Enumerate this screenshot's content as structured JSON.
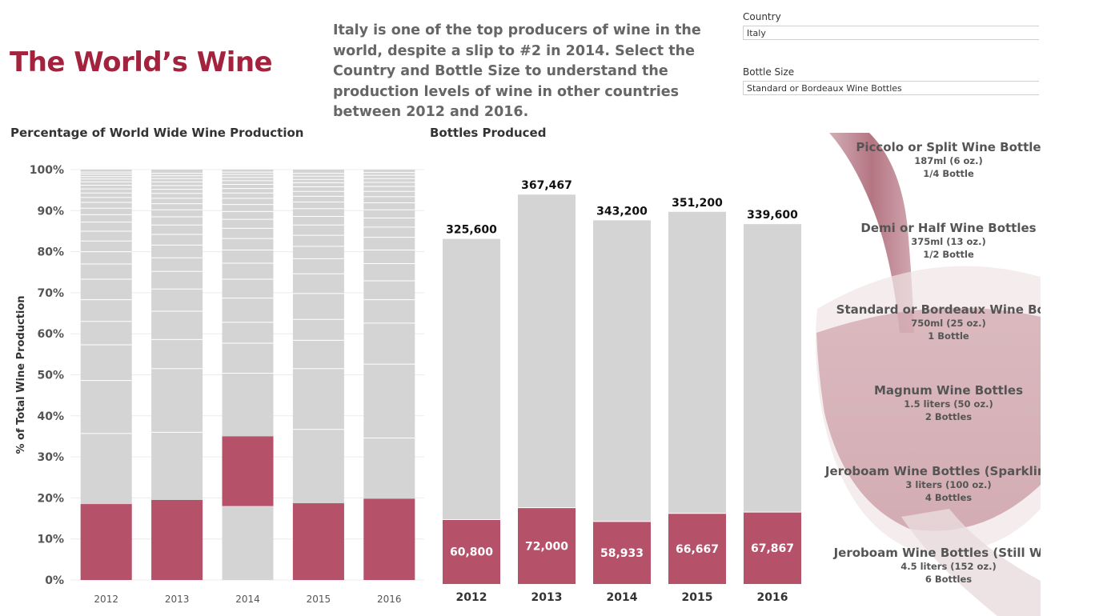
{
  "header": {
    "title": "The World’s Wine",
    "intro": "Italy is one of the top producers of wine in the world, despite a slip to #2 in 2014. Select the Country and Bottle Size to understand the production levels of wine in other countries between 2012 and 2016."
  },
  "filters": {
    "country": {
      "label": "Country",
      "value": "Italy"
    },
    "bottle_size": {
      "label": "Bottle Size",
      "value": "Standard or Bordeaux Wine Bottles"
    }
  },
  "colors": {
    "highlight": "#b5526a",
    "other": "#d4d4d4",
    "title": "#a3233e"
  },
  "chart_data": [
    {
      "type": "bar",
      "stacked": true,
      "title": "Percentage of World Wide Wine Production",
      "ylabel": "% of Total Wine Production",
      "xlabel": "",
      "categories": [
        "2012",
        "2013",
        "2014",
        "2015",
        "2016"
      ],
      "yticks": [
        "0%",
        "10%",
        "20%",
        "30%",
        "40%",
        "50%",
        "60%",
        "70%",
        "80%",
        "90%",
        "100%"
      ],
      "ylim": [
        0,
        100
      ],
      "grid": true,
      "series": [
        {
          "values": [
            0,
            0,
            18,
            0,
            0
          ]
        },
        {
          "values": [
            18.5,
            19.5,
            17,
            18.7,
            19.8
          ]
        }
      ],
      "other_segment_boundaries": [
        [
          35.7,
          48.6,
          57.3,
          63,
          68.3,
          73.3,
          77,
          80,
          82.6,
          85,
          87.2,
          89,
          90.6,
          92,
          93.2,
          94.3,
          95.3,
          96.2,
          97,
          97.7,
          98.3,
          98.9,
          99.4
        ],
        [
          36,
          51.5,
          58.6,
          65.5,
          70.9,
          75.2,
          78.5,
          81.6,
          84.2,
          86.5,
          88.5,
          90.2,
          91.7,
          93,
          94.2,
          95.2,
          96.1,
          97,
          97.8,
          98.5,
          99.1
        ],
        [
          50.4,
          57.7,
          62.8,
          68.7,
          73.3,
          77.2,
          80.4,
          83.2,
          85.7,
          87.9,
          89.8,
          91.5,
          93,
          94.3,
          95.4,
          96.4,
          97.3,
          98.1,
          98.8,
          99.4
        ],
        [
          36.7,
          51.5,
          58.4,
          63.5,
          69.8,
          74.6,
          78.3,
          81.3,
          84,
          86.5,
          88.6,
          90.5,
          92.1,
          93.5,
          94.7,
          95.8,
          96.8,
          97.6,
          98.4,
          99.1
        ],
        [
          34.6,
          52.6,
          62.6,
          68.3,
          72.9,
          77.1,
          80.4,
          83.5,
          86,
          88.2,
          90.2,
          91.9,
          93.4,
          94.7,
          95.9,
          96.9,
          97.8,
          98.6,
          99.3
        ]
      ]
    },
    {
      "type": "bar",
      "stacked": true,
      "title": "Bottles Produced",
      "xlabel": "",
      "ylabel": "",
      "categories": [
        "2012",
        "2013",
        "2014",
        "2015",
        "2016"
      ],
      "series": [
        {
          "values": [
            60800,
            72000,
            58933,
            66667,
            67867
          ],
          "labels": [
            "60,800",
            "72,000",
            "58,933",
            "66,667",
            "67,867"
          ]
        }
      ],
      "totals": [
        325600,
        367467,
        343200,
        351200,
        339600
      ],
      "total_labels": [
        "325,600",
        "367,467",
        "343,200",
        "351,200",
        "339,600"
      ],
      "ylim": [
        0,
        385000
      ],
      "grid": false
    }
  ],
  "bottle_sizes": [
    {
      "name": "Piccolo or Split Wine Bottle",
      "volume": "187ml (6 oz.)",
      "equiv": "1/4 Bottle"
    },
    {
      "name": "Demi or Half Wine Bottles",
      "volume": "375ml (13 oz.)",
      "equiv": "1/2 Bottle"
    },
    {
      "name": "Standard or Bordeaux Wine Bottl",
      "volume": "750ml (25 oz.)",
      "equiv": "1 Bottle"
    },
    {
      "name": "Magnum Wine Bottles",
      "volume": "1.5 liters (50 oz.)",
      "equiv": "2 Bottles"
    },
    {
      "name": "Jeroboam Wine Bottles (Sparkling W",
      "volume": "3 liters (100 oz.)",
      "equiv": "4 Bottles"
    },
    {
      "name": "Jeroboam Wine Bottles (Still Wine",
      "volume": "4.5 liters (152 oz.)",
      "equiv": "6 Bottles"
    }
  ]
}
